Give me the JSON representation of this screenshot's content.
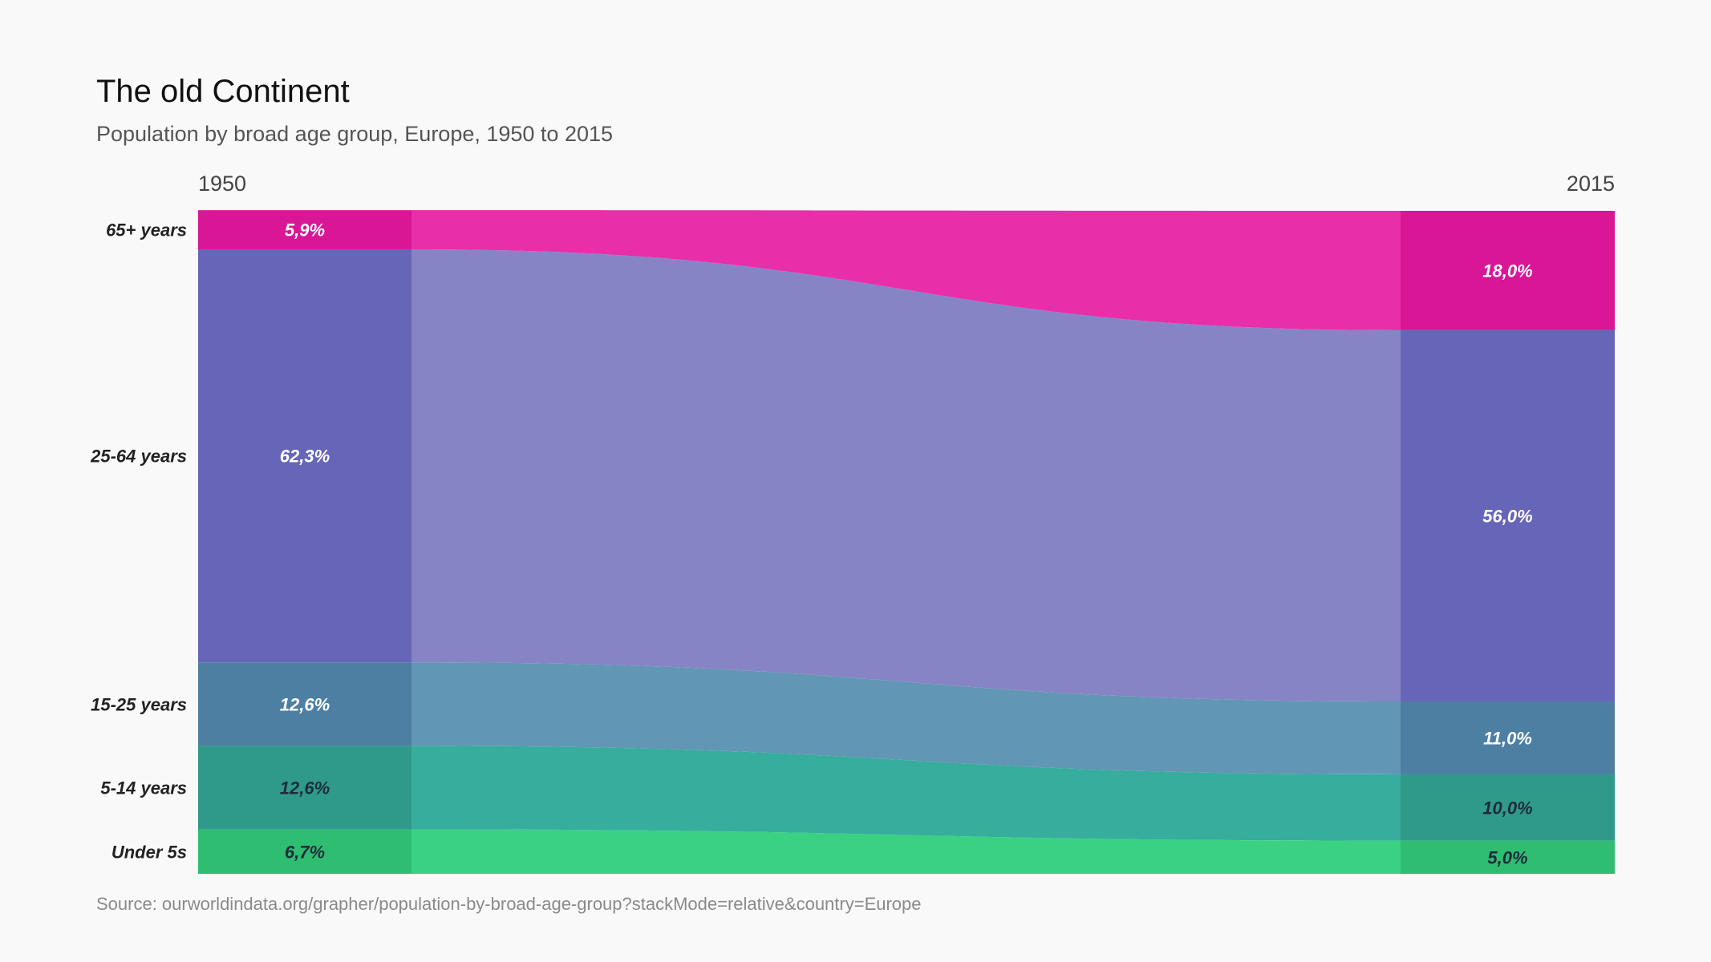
{
  "header": {
    "title": "The old Continent",
    "subtitle": "Population by broad age group, Europe, 1950 to 2015"
  },
  "footer": {
    "source": "Source: ourworldindata.org/grapher/population-by-broad-age-group?stackMode=relative&country=Europe"
  },
  "chart_data": {
    "type": "area",
    "stack_mode": "relative",
    "x": [
      "1950",
      "2015"
    ],
    "ylim": [
      0,
      100
    ],
    "series": [
      {
        "name": "Under 5s",
        "values": [
          6.7,
          5.0
        ],
        "labels": [
          "6,7%",
          "5,0%"
        ],
        "color_bar": "#2fbd72",
        "color_flow": "#3ad183",
        "label_color": "#1e2b3a"
      },
      {
        "name": "5-14 years",
        "values": [
          12.6,
          10.0
        ],
        "labels": [
          "12,6%",
          "10,0%"
        ],
        "color_bar": "#309a8a",
        "color_flow": "#36ad9d",
        "label_color": "#1e2b3a"
      },
      {
        "name": "15-25 years",
        "values": [
          12.6,
          11.0
        ],
        "labels": [
          "12,6%",
          "11,0%"
        ],
        "color_bar": "#4d7fa2",
        "color_flow": "#6296b5",
        "label_color": "#ffffff"
      },
      {
        "name": "25-64 years",
        "values": [
          62.3,
          56.0
        ],
        "labels": [
          "62,3%",
          "56,0%"
        ],
        "color_bar": "#6765b7",
        "color_flow": "#8784c5",
        "label_color": "#ffffff"
      },
      {
        "name": "65+ years",
        "values": [
          5.9,
          18.0
        ],
        "labels": [
          "5,9%",
          "18,0%"
        ],
        "color_bar": "#d81696",
        "color_flow": "#e82ea8",
        "label_color": "#ffffff"
      }
    ]
  }
}
